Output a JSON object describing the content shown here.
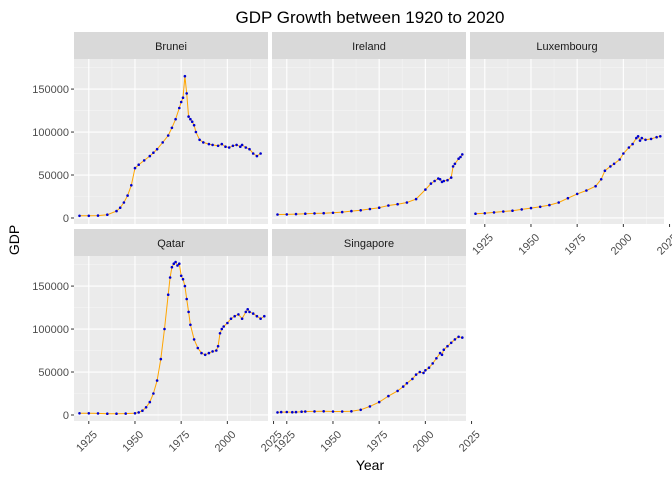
{
  "chart_data": {
    "type": "line",
    "title": "GDP Growth between 1920 to 2020",
    "xlabel": "Year",
    "ylabel": "GDP",
    "xlim": [
      1917,
      2022
    ],
    "ylim": [
      -7000,
      185000
    ],
    "x_ticks": [
      1925,
      1950,
      1975,
      2000,
      2025
    ],
    "y_ticks": [
      0,
      50000,
      100000,
      150000
    ],
    "y_tick_labels": [
      "0",
      "50000",
      "100000",
      "150000"
    ],
    "grid": true,
    "facet_layout": "3 columns x 2 rows",
    "line_color": "#FFA500",
    "point_color": "#0000CD",
    "panel_bg": "#EBEBEB",
    "strip_bg": "#D9D9D9",
    "panels": [
      {
        "name": "Brunei",
        "x": [
          1920,
          1925,
          1930,
          1935,
          1940,
          1942,
          1944,
          1946,
          1948,
          1950,
          1952,
          1955,
          1958,
          1960,
          1962,
          1965,
          1968,
          1970,
          1972,
          1974,
          1975,
          1976,
          1977,
          1978,
          1979,
          1980,
          1981,
          1982,
          1983,
          1985,
          1987,
          1990,
          1992,
          1995,
          1997,
          1999,
          2001,
          2003,
          2005,
          2007,
          2008,
          2010,
          2012,
          2014,
          2016,
          2018
        ],
        "y": [
          2500,
          2600,
          2800,
          3800,
          8000,
          12000,
          18000,
          26000,
          38000,
          58000,
          62000,
          67000,
          72000,
          76000,
          80000,
          88000,
          96000,
          105000,
          115000,
          128000,
          135000,
          140000,
          165000,
          145000,
          118000,
          115000,
          112000,
          108000,
          100000,
          91000,
          88000,
          86000,
          85000,
          84000,
          86000,
          83000,
          82000,
          84000,
          85000,
          83000,
          85000,
          82000,
          80000,
          75000,
          72000,
          75000
        ]
      },
      {
        "name": "Ireland",
        "x": [
          1920,
          1925,
          1930,
          1935,
          1940,
          1945,
          1950,
          1955,
          1960,
          1965,
          1970,
          1975,
          1980,
          1985,
          1990,
          1995,
          2000,
          2003,
          2005,
          2007,
          2008,
          2009,
          2010,
          2012,
          2014,
          2015,
          2016,
          2018,
          2019,
          2020
        ],
        "y": [
          4000,
          4200,
          4500,
          5000,
          5300,
          5600,
          6000,
          6800,
          8000,
          9000,
          10500,
          12000,
          14500,
          16000,
          18000,
          22000,
          33000,
          40000,
          43000,
          46000,
          45000,
          42000,
          43000,
          44000,
          47000,
          60000,
          63000,
          69000,
          71000,
          74000
        ]
      },
      {
        "name": "Luxembourg",
        "x": [
          1920,
          1925,
          1930,
          1935,
          1940,
          1945,
          1950,
          1955,
          1960,
          1965,
          1970,
          1975,
          1980,
          1985,
          1988,
          1990,
          1993,
          1995,
          1998,
          2000,
          2003,
          2005,
          2007,
          2008,
          2009,
          2010,
          2012,
          2015,
          2018,
          2020
        ],
        "y": [
          5000,
          5500,
          6500,
          7500,
          8500,
          10000,
          11500,
          13000,
          15000,
          18000,
          23000,
          28000,
          32000,
          37000,
          45000,
          55000,
          60000,
          63000,
          68000,
          75000,
          82000,
          86000,
          93000,
          95000,
          90000,
          93000,
          91000,
          92000,
          94000,
          95000
        ]
      },
      {
        "name": "Qatar",
        "x": [
          1920,
          1925,
          1930,
          1935,
          1940,
          1945,
          1950,
          1952,
          1954,
          1956,
          1958,
          1960,
          1962,
          1964,
          1966,
          1968,
          1969,
          1970,
          1971,
          1972,
          1973,
          1974,
          1975,
          1976,
          1977,
          1978,
          1979,
          1980,
          1982,
          1984,
          1986,
          1988,
          1990,
          1992,
          1994,
          1995,
          1996,
          1997,
          1998,
          2000,
          2002,
          2004,
          2006,
          2008,
          2010,
          2011,
          2012,
          2014,
          2016,
          2018,
          2020
        ],
        "y": [
          2000,
          2000,
          1800,
          1500,
          1500,
          1600,
          2000,
          3000,
          5000,
          9000,
          15000,
          25000,
          40000,
          65000,
          100000,
          140000,
          160000,
          172000,
          176000,
          178000,
          174000,
          176000,
          162000,
          158000,
          150000,
          135000,
          120000,
          105000,
          88000,
          78000,
          72000,
          70000,
          72000,
          74000,
          75000,
          80000,
          95000,
          100000,
          103000,
          107000,
          112000,
          115000,
          117000,
          112000,
          120000,
          123000,
          120000,
          118000,
          115000,
          112000,
          115000
        ]
      },
      {
        "name": "Singapore",
        "x": [
          1920,
          1922,
          1925,
          1928,
          1930,
          1933,
          1935,
          1940,
          1945,
          1950,
          1955,
          1960,
          1965,
          1970,
          1975,
          1980,
          1985,
          1988,
          1990,
          1993,
          1995,
          1997,
          1999,
          2000,
          2002,
          2004,
          2006,
          2008,
          2009,
          2010,
          2012,
          2014,
          2016,
          2018,
          2020
        ],
        "y": [
          3000,
          3300,
          3500,
          3200,
          3400,
          3800,
          4000,
          4200,
          4300,
          4100,
          4000,
          4300,
          6000,
          10000,
          15000,
          22000,
          28000,
          33000,
          37000,
          42000,
          47000,
          50000,
          49000,
          52000,
          55000,
          60000,
          66000,
          72000,
          70000,
          76000,
          80000,
          84000,
          88000,
          91000,
          90000
        ]
      }
    ]
  }
}
